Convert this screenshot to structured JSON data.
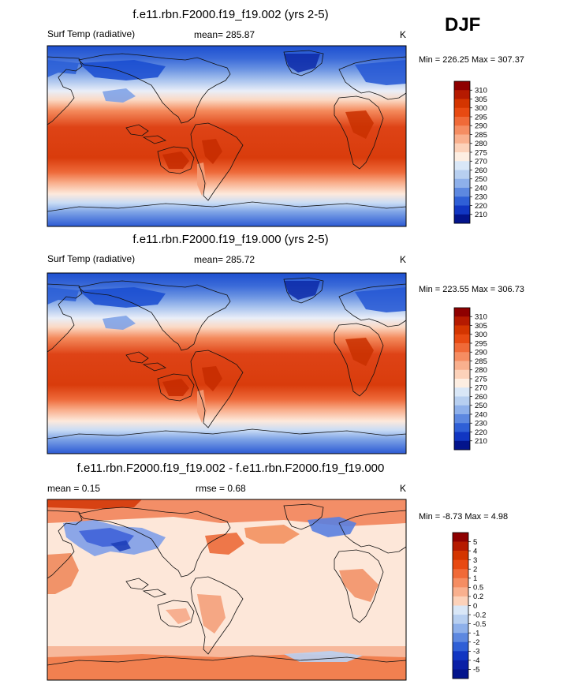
{
  "season": "DJF",
  "panels": [
    {
      "title": "f.e11.rbn.F2000.f19_f19.002 (yrs 2-5)",
      "left_label": "Surf Temp (radiative)",
      "center_label": "mean= 285.87",
      "units": "K",
      "min_max": "Min = 226.25 Max = 307.37"
    },
    {
      "title": "f.e11.rbn.F2000.f19_f19.000 (yrs 2-5)",
      "left_label": "Surf Temp (radiative)",
      "center_label": "mean= 285.72",
      "units": "K",
      "min_max": "Min = 223.55 Max = 306.73"
    },
    {
      "title": "f.e11.rbn.F2000.f19_f19.002 - f.e11.rbn.F2000.f19_f19.000",
      "left_label": "mean =   0.15",
      "center_label": "rmse =   0.68",
      "units": "K",
      "min_max": "Min =  -8.73 Max =   4.98"
    }
  ],
  "chart_data": [
    {
      "type": "heatmap",
      "title": "f.e11.rbn.F2000.f19_f19.002 (yrs 2-5)",
      "variable": "Surf Temp (radiative)",
      "units": "K",
      "mean": 285.87,
      "min": 226.25,
      "max": 307.37,
      "colorbar_labels": [
        "310",
        "305",
        "300",
        "295",
        "290",
        "285",
        "280",
        "275",
        "270",
        "260",
        "250",
        "240",
        "230",
        "220",
        "210"
      ],
      "colorbar_colors": [
        "#8e0000",
        "#b51a00",
        "#d43500",
        "#e84a12",
        "#f06a38",
        "#f58d62",
        "#f9b08e",
        "#fcd2ba",
        "#fdeee2",
        "#d9e7f7",
        "#b7cff0",
        "#8eb0ea",
        "#5d88e0",
        "#2f5fd6",
        "#1136c2",
        "#03148c"
      ]
    },
    {
      "type": "heatmap",
      "title": "f.e11.rbn.F2000.f19_f19.000 (yrs 2-5)",
      "variable": "Surf Temp (radiative)",
      "units": "K",
      "mean": 285.72,
      "min": 223.55,
      "max": 306.73,
      "colorbar_labels": [
        "310",
        "305",
        "300",
        "295",
        "290",
        "285",
        "280",
        "275",
        "270",
        "260",
        "250",
        "240",
        "230",
        "220",
        "210"
      ],
      "colorbar_colors": [
        "#8e0000",
        "#b51a00",
        "#d43500",
        "#e84a12",
        "#f06a38",
        "#f58d62",
        "#f9b08e",
        "#fcd2ba",
        "#fdeee2",
        "#d9e7f7",
        "#b7cff0",
        "#8eb0ea",
        "#5d88e0",
        "#2f5fd6",
        "#1136c2",
        "#03148c"
      ]
    },
    {
      "type": "heatmap",
      "title": "f.e11.rbn.F2000.f19_f19.002 - f.e11.rbn.F2000.f19_f19.000",
      "units": "K",
      "mean": 0.15,
      "rmse": 0.68,
      "min": -8.73,
      "max": 4.98,
      "colorbar_labels": [
        "5",
        "4",
        "3",
        "2",
        "1",
        "0.5",
        "0.2",
        "0",
        "-0.2",
        "-0.5",
        "-1",
        "-2",
        "-3",
        "-4",
        "-5"
      ],
      "colorbar_colors": [
        "#8e0000",
        "#b51a00",
        "#d43500",
        "#e84a12",
        "#f06a38",
        "#f58d62",
        "#f9b08e",
        "#fcd2ba",
        "#d9e7f7",
        "#b7cff0",
        "#8eb0ea",
        "#5d88e0",
        "#2f5fd6",
        "#1136c2",
        "#0a1fa6",
        "#03148c"
      ]
    }
  ]
}
